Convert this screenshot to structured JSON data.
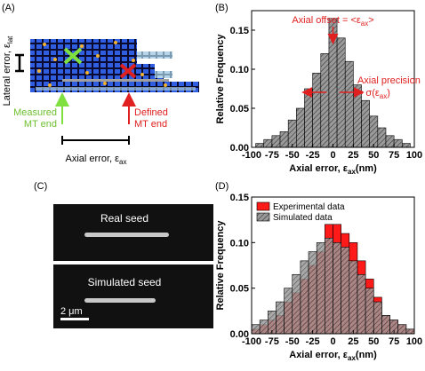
{
  "panel_labels": [
    "(A)",
    "(B)",
    "(C)",
    "(D)"
  ],
  "diagram": {
    "lateral_label": "Lateral error, ε",
    "lateral_sub": "lat",
    "measured_label": [
      "Measured",
      "MT end"
    ],
    "defined_label": [
      "Defined",
      "MT end"
    ],
    "axial_label": "Axial error, ε",
    "axial_sub": "ax"
  },
  "images": {
    "top_label": "Real seed",
    "bottom_label": "Simulated seed",
    "scale_label": "2 μm"
  },
  "chart_data": [
    {
      "type": "histogram",
      "y_label": "Relative Frequency",
      "x_label": "Axial error, ε",
      "x_label_sub": "ax",
      "x_label_unit": "(nm)",
      "bins": [
        -95,
        -85,
        -75,
        -65,
        -55,
        -45,
        -35,
        -25,
        -15,
        -5,
        5,
        15,
        25,
        35,
        45,
        55,
        65,
        75,
        85,
        95
      ],
      "values": [
        0.005,
        0.01,
        0.015,
        0.02,
        0.035,
        0.05,
        0.075,
        0.095,
        0.12,
        0.165,
        0.14,
        0.11,
        0.08,
        0.06,
        0.04,
        0.025,
        0.015,
        0.01,
        0.005
      ],
      "color": "#999999",
      "xlim": [
        -100,
        100
      ],
      "xticks": [
        -100,
        -75,
        -50,
        -25,
        0,
        25,
        50,
        75,
        100
      ],
      "ylim": [
        0,
        0.175
      ],
      "yticks": [
        {
          "value": 0,
          "label": "0.00"
        },
        {
          "value": 0.05,
          "label": "0.05"
        },
        {
          "value": 0.1,
          "label": "0.10"
        },
        {
          "value": 0.15,
          "label": "0.15"
        }
      ],
      "annotations": {
        "offset": "Axial offset = <ε",
        "offset_sub": "ax",
        "offset_end": ">",
        "precision": "Axial precision",
        "precision2": "= σ(ε",
        "precision_sub": "ax",
        "precision_end": ")"
      }
    },
    {
      "type": "histogram",
      "y_label": "Relative Frequency",
      "x_label": "Axial error, ε",
      "x_label_sub": "ax",
      "x_label_unit": "(nm)",
      "bins": [
        -100,
        -90,
        -80,
        -70,
        -60,
        -50,
        -40,
        -30,
        -20,
        -10,
        0,
        10,
        20,
        30,
        40,
        50,
        60,
        70,
        80,
        90,
        100
      ],
      "series": [
        {
          "name": "Experimental data",
          "color": "#ff1a1a",
          "values": [
            0.005,
            0.01,
            0.015,
            0.02,
            0.035,
            0.045,
            0.06,
            0.075,
            0.09,
            0.12,
            0.12,
            0.11,
            0.1,
            0.08,
            0.06,
            0.04,
            0.02,
            0.015,
            0.01,
            0.005
          ]
        },
        {
          "name": "Simulated data",
          "color": "#999999",
          "values": [
            0.01,
            0.015,
            0.025,
            0.035,
            0.05,
            0.065,
            0.08,
            0.09,
            0.1,
            0.105,
            0.1,
            0.095,
            0.08,
            0.065,
            0.05,
            0.035,
            0.02,
            0.015,
            0.01,
            0.005
          ]
        }
      ],
      "xlim": [
        -100,
        100
      ],
      "xticks": [
        -100,
        -75,
        -50,
        -25,
        0,
        25,
        50,
        75,
        100
      ],
      "ylim": [
        0,
        0.15
      ],
      "yticks": [
        {
          "value": 0,
          "label": "0.00"
        },
        {
          "value": 0.05,
          "label": "0.05"
        },
        {
          "value": 0.1,
          "label": "0.10"
        },
        {
          "value": 0.15,
          "label": "0.15"
        }
      ],
      "legend": "top-left"
    }
  ]
}
